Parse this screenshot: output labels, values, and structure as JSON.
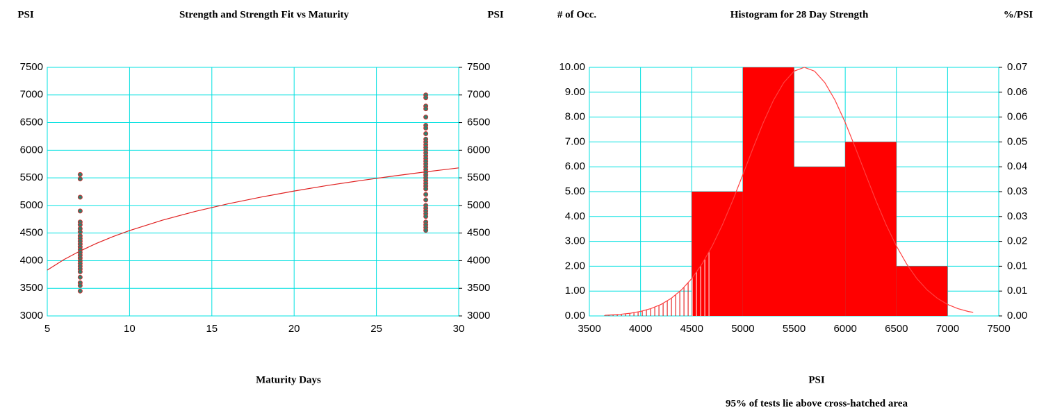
{
  "chart_data": [
    {
      "type": "scatter",
      "title": "Strength and Strength Fit vs Maturity",
      "ylabel": "PSI",
      "y2label": "PSI",
      "xlabel": "Maturity Days",
      "xlim": [
        5,
        30
      ],
      "xticks": [
        5,
        10,
        15,
        20,
        25,
        30
      ],
      "ylim": [
        3000,
        7500
      ],
      "yticks": [
        3000,
        3500,
        4000,
        4500,
        5000,
        5500,
        6000,
        6500,
        7000,
        7500
      ],
      "y2lim": [
        3000,
        7500
      ],
      "y2ticks": [
        3000,
        3500,
        4000,
        4500,
        5000,
        5500,
        6000,
        6500,
        7000,
        7500
      ],
      "grid": true,
      "grid_color": "#00e0e0",
      "points": {
        "color": "#2f7f6f",
        "edge_color": "#d03030",
        "x": [
          7,
          7,
          7,
          7,
          7,
          7,
          7,
          7,
          7,
          7,
          7,
          7,
          7,
          7,
          7,
          7,
          7,
          7,
          7,
          7,
          7,
          7,
          7,
          7,
          7,
          7,
          28,
          28,
          28,
          28,
          28,
          28,
          28,
          28,
          28,
          28,
          28,
          28,
          28,
          28,
          28,
          28,
          28,
          28,
          28,
          28,
          28,
          28,
          28,
          28,
          28,
          28,
          28,
          28,
          28,
          28,
          28,
          28,
          28,
          28,
          28,
          28,
          28,
          28
        ],
        "values": [
          5560,
          5480,
          5150,
          4900,
          4700,
          4650,
          4580,
          4520,
          4450,
          4400,
          4350,
          4300,
          4250,
          4200,
          4150,
          4100,
          4050,
          4000,
          3950,
          3900,
          3850,
          3800,
          3700,
          3600,
          3550,
          3450,
          7000,
          6950,
          6800,
          6750,
          6600,
          6450,
          6400,
          6300,
          6200,
          6150,
          6100,
          6050,
          6000,
          5950,
          5900,
          5850,
          5800,
          5750,
          5700,
          5650,
          5600,
          5550,
          5500,
          5450,
          5400,
          5350,
          5300,
          5200,
          5100,
          5000,
          4950,
          4900,
          4850,
          4800,
          4700,
          4650,
          4600,
          4550
        ]
      },
      "fit": {
        "color": "#e02020",
        "x": [
          5,
          6,
          7,
          8,
          9,
          10,
          12,
          14,
          16,
          18,
          20,
          22,
          24,
          26,
          28,
          30
        ],
        "values": [
          3830,
          4018,
          4177,
          4315,
          4437,
          4545,
          4734,
          4893,
          5031,
          5152,
          5261,
          5360,
          5449,
          5532,
          5608,
          5680
        ]
      }
    },
    {
      "type": "histogram",
      "title": "Histogram for 28 Day Strength",
      "ylabel": "# of Occ.",
      "y2label": "%/PSI",
      "xlabel": "PSI",
      "annotation": "95% of tests lie above cross-hatched area",
      "xlim": [
        3500,
        7500
      ],
      "xticks": [
        3500,
        4000,
        4500,
        5000,
        5500,
        6000,
        6500,
        7000,
        7500
      ],
      "ylim": [
        0,
        10
      ],
      "yticks": [
        {
          "value": 0,
          "label": "0.00"
        },
        {
          "value": 1,
          "label": "1.00"
        },
        {
          "value": 2,
          "label": "2.00"
        },
        {
          "value": 3,
          "label": "3.00"
        },
        {
          "value": 4,
          "label": "4.00"
        },
        {
          "value": 5,
          "label": "5.00"
        },
        {
          "value": 6,
          "label": "6.00"
        },
        {
          "value": 7,
          "label": "7.00"
        },
        {
          "value": 8,
          "label": "8.00"
        },
        {
          "value": 9,
          "label": "9.00"
        },
        {
          "value": 10,
          "label": "10.00"
        }
      ],
      "y2lim": [
        0,
        0.07
      ],
      "y2ticks": [
        {
          "value": 0,
          "label": "0.00"
        },
        {
          "value": 0.007,
          "label": "0.01"
        },
        {
          "value": 0.014,
          "label": "0.01"
        },
        {
          "value": 0.021,
          "label": "0.02"
        },
        {
          "value": 0.028,
          "label": "0.03"
        },
        {
          "value": 0.035,
          "label": "0.03"
        },
        {
          "value": 0.042,
          "label": "0.04"
        },
        {
          "value": 0.049,
          "label": "0.05"
        },
        {
          "value": 0.056,
          "label": "0.06"
        },
        {
          "value": 0.063,
          "label": "0.06"
        },
        {
          "value": 0.07,
          "label": "0.07"
        }
      ],
      "grid": true,
      "grid_color": "#00e0e0",
      "bins": [
        4500,
        5000,
        5500,
        6000,
        6500,
        7000
      ],
      "counts": [
        5,
        10,
        6,
        7,
        2
      ],
      "color": "#ff0000",
      "hatch_to": 4670,
      "hatch_color": "#e00000",
      "curve": {
        "color": "#ff4040",
        "axis": "y2",
        "x": [
          3650,
          3800,
          3900,
          4000,
          4100,
          4200,
          4300,
          4400,
          4500,
          4600,
          4700,
          4800,
          4900,
          5000,
          5100,
          5200,
          5300,
          5400,
          5500,
          5600,
          5700,
          5800,
          5900,
          6000,
          6100,
          6200,
          6300,
          6400,
          6500,
          6600,
          6700,
          6800,
          6900,
          7000,
          7100,
          7200,
          7250
        ],
        "values": [
          0.00018,
          0.00044,
          0.00076,
          0.00127,
          0.00207,
          0.00325,
          0.00496,
          0.00734,
          0.01052,
          0.01462,
          0.01968,
          0.02568,
          0.03248,
          0.03983,
          0.04732,
          0.05447,
          0.0608,
          0.06574,
          0.06892,
          0.07,
          0.06892,
          0.06574,
          0.0608,
          0.05447,
          0.04732,
          0.03983,
          0.03248,
          0.02568,
          0.01968,
          0.01462,
          0.01052,
          0.00734,
          0.00496,
          0.00325,
          0.00207,
          0.00127,
          0.00099
        ]
      }
    }
  ]
}
